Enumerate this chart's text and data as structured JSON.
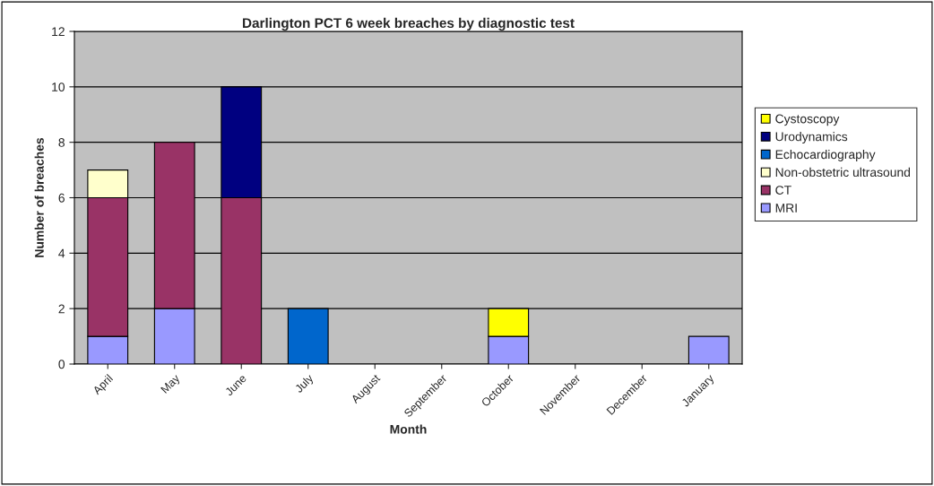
{
  "chart_data": {
    "type": "bar",
    "title": "Darlington PCT 6 week breaches by diagnostic test",
    "xlabel": "Month",
    "ylabel": "Number of breaches",
    "categories": [
      "April",
      "May",
      "June",
      "July",
      "August",
      "September",
      "October",
      "November",
      "December",
      "January"
    ],
    "stacked": true,
    "series": [
      {
        "name": "MRI",
        "color": "#9999ff",
        "values": [
          1,
          2,
          0,
          0,
          0,
          0,
          1,
          0,
          0,
          1
        ]
      },
      {
        "name": "CT",
        "color": "#993366",
        "values": [
          5,
          6,
          6,
          0,
          0,
          0,
          0,
          0,
          0,
          0
        ]
      },
      {
        "name": "Non-obstetric ultrasound",
        "color": "#ffffcc",
        "values": [
          1,
          0,
          0,
          0,
          0,
          0,
          0,
          0,
          0,
          0
        ]
      },
      {
        "name": "Echocardiography",
        "color": "#0066cc",
        "values": [
          0,
          0,
          0,
          2,
          0,
          0,
          0,
          0,
          0,
          0
        ]
      },
      {
        "name": "Urodynamics",
        "color": "#000080",
        "values": [
          0,
          0,
          4,
          0,
          0,
          0,
          0,
          0,
          0,
          0
        ]
      },
      {
        "name": "Cystoscopy",
        "color": "#ffff00",
        "values": [
          0,
          0,
          0,
          0,
          0,
          0,
          1,
          0,
          0,
          0
        ]
      }
    ],
    "ylim": [
      0,
      12
    ],
    "yticks": [
      0,
      2,
      4,
      6,
      8,
      10,
      12
    ],
    "grid": "y",
    "legend": "right"
  }
}
